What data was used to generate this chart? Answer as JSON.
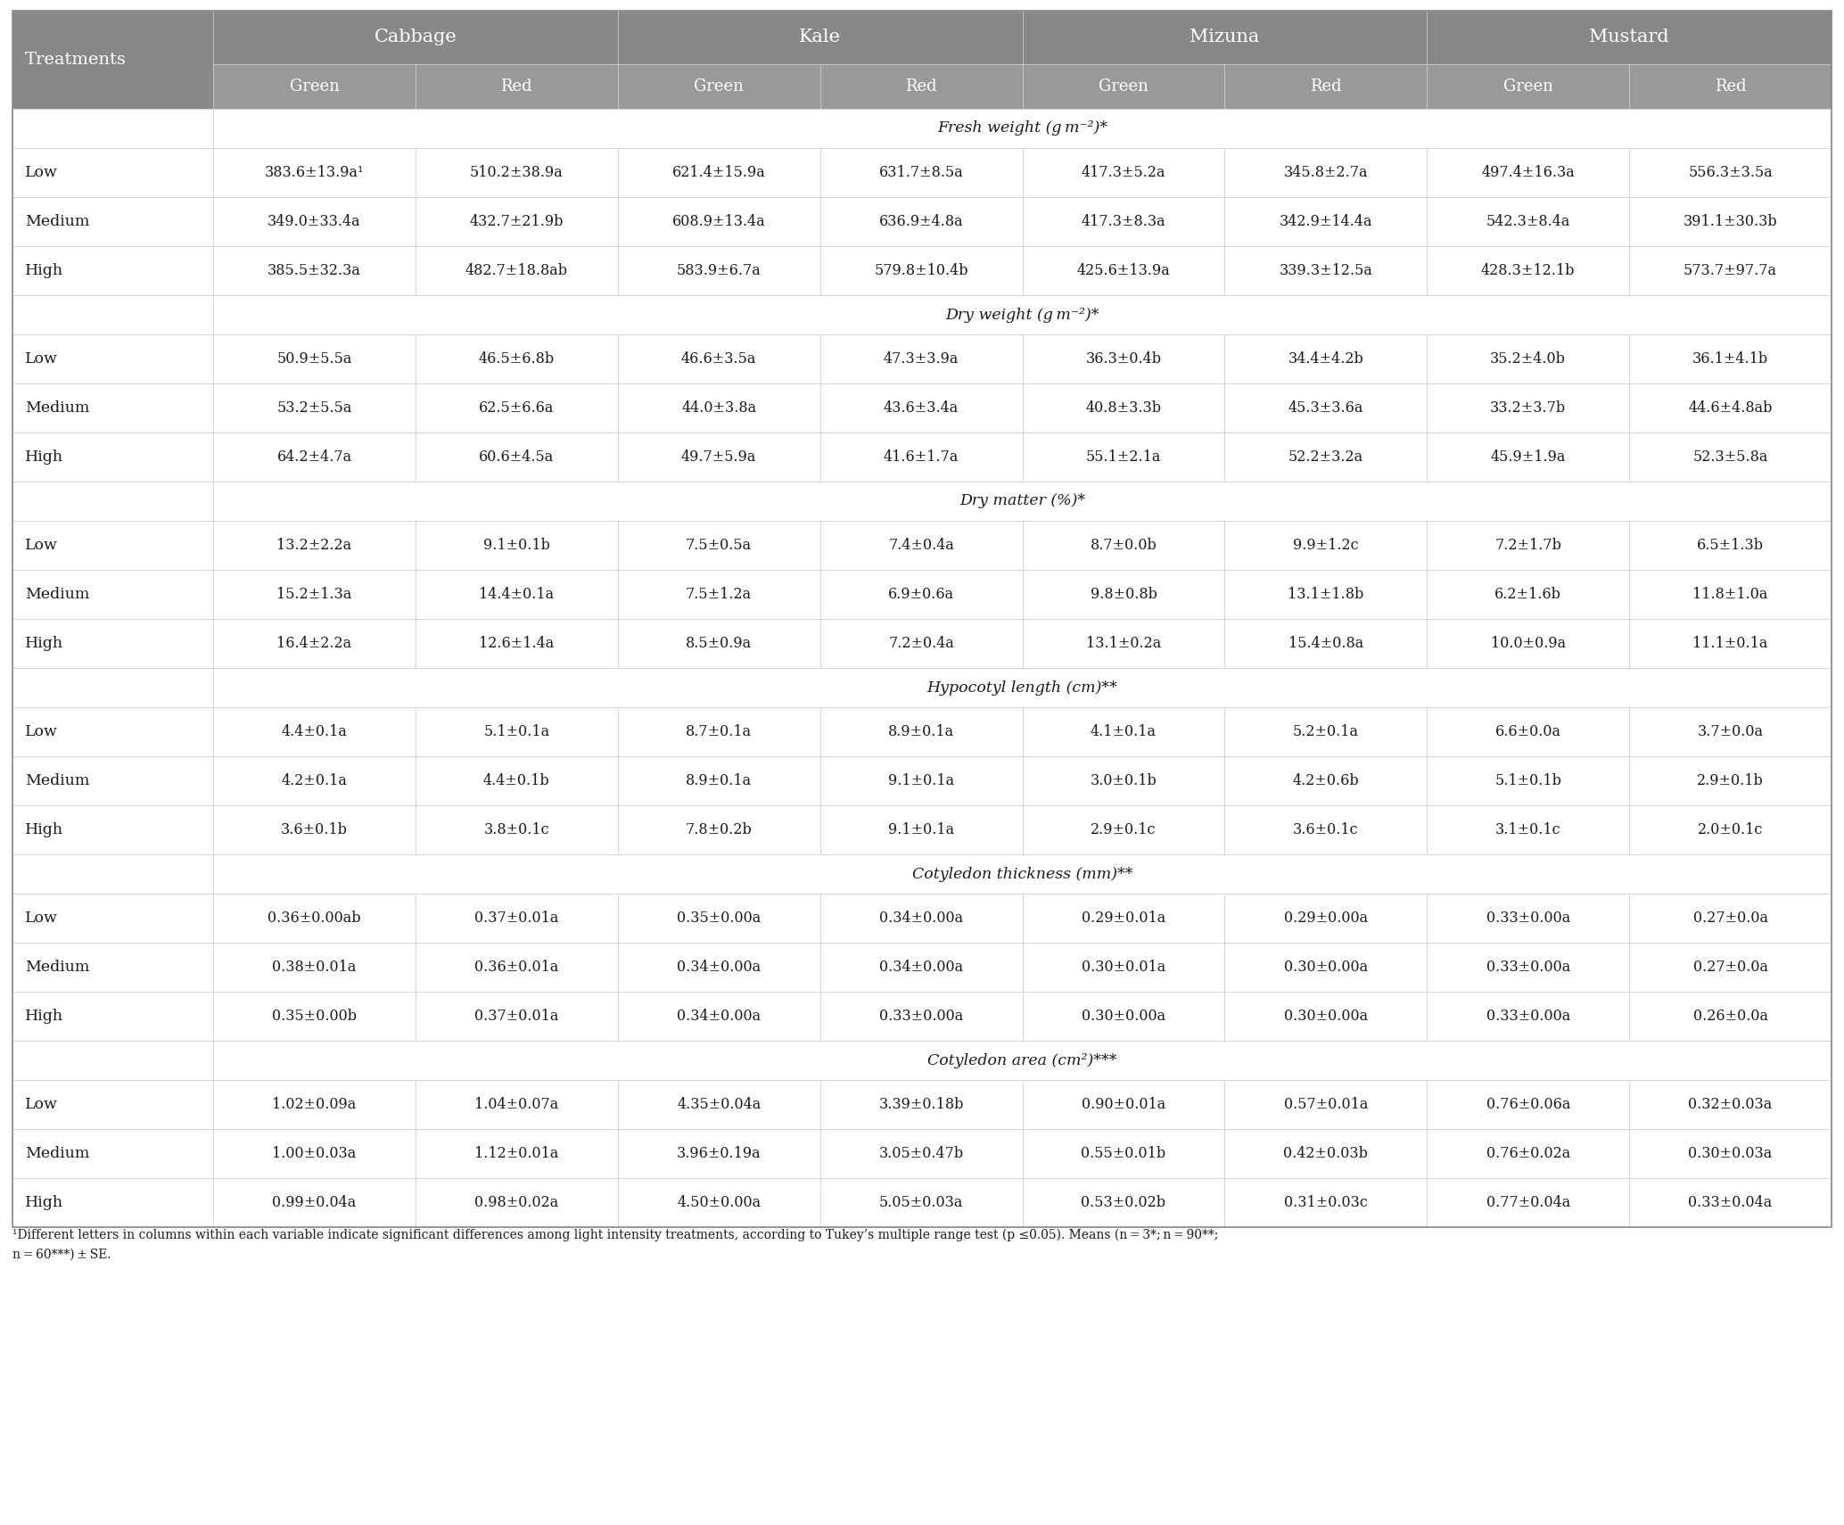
{
  "header_bg": "#888888",
  "header_text": "#ffffff",
  "subheader_bg": "#999999",
  "row_bg_white": "#ffffff",
  "cell_text": "#1a1a1a",
  "border_color": "#cccccc",
  "footnote_text": "#1a1a1a",
  "col1_label": "Treatments",
  "main_headers": [
    "Cabbage",
    "Kale",
    "Mizuna",
    "Mustard"
  ],
  "sub_headers": [
    "Green",
    "Red",
    "Green",
    "Red",
    "Green",
    "Red",
    "Green",
    "Red"
  ],
  "sections": [
    {
      "title": "Fresh weight (g m⁻²)*",
      "rows": [
        {
          "label": "Low",
          "vals": [
            "383.6±13.9a¹",
            "510.2±38.9a",
            "621.4±15.9a",
            "631.7±8.5a",
            "417.3±5.2a",
            "345.8±2.7a",
            "497.4±16.3a",
            "556.3±3.5a"
          ]
        },
        {
          "label": "Medium",
          "vals": [
            "349.0±33.4a",
            "432.7±21.9b",
            "608.9±13.4a",
            "636.9±4.8a",
            "417.3±8.3a",
            "342.9±14.4a",
            "542.3±8.4a",
            "391.1±30.3b"
          ]
        },
        {
          "label": "High",
          "vals": [
            "385.5±32.3a",
            "482.7±18.8ab",
            "583.9±6.7a",
            "579.8±10.4b",
            "425.6±13.9a",
            "339.3±12.5a",
            "428.3±12.1b",
            "573.7±97.7a"
          ]
        }
      ]
    },
    {
      "title": "Dry weight (g m⁻²)*",
      "rows": [
        {
          "label": "Low",
          "vals": [
            "50.9±5.5a",
            "46.5±6.8b",
            "46.6±3.5a",
            "47.3±3.9a",
            "36.3±0.4b",
            "34.4±4.2b",
            "35.2±4.0b",
            "36.1±4.1b"
          ]
        },
        {
          "label": "Medium",
          "vals": [
            "53.2±5.5a",
            "62.5±6.6a",
            "44.0±3.8a",
            "43.6±3.4a",
            "40.8±3.3b",
            "45.3±3.6a",
            "33.2±3.7b",
            "44.6±4.8ab"
          ]
        },
        {
          "label": "High",
          "vals": [
            "64.2±4.7a",
            "60.6±4.5a",
            "49.7±5.9a",
            "41.6±1.7a",
            "55.1±2.1a",
            "52.2±3.2a",
            "45.9±1.9a",
            "52.3±5.8a"
          ]
        }
      ]
    },
    {
      "title": "Dry matter (%)*",
      "rows": [
        {
          "label": "Low",
          "vals": [
            "13.2±2.2a",
            "9.1±0.1b",
            "7.5±0.5a",
            "7.4±0.4a",
            "8.7±0.0b",
            "9.9±1.2c",
            "7.2±1.7b",
            "6.5±1.3b"
          ]
        },
        {
          "label": "Medium",
          "vals": [
            "15.2±1.3a",
            "14.4±0.1a",
            "7.5±1.2a",
            "6.9±0.6a",
            "9.8±0.8b",
            "13.1±1.8b",
            "6.2±1.6b",
            "11.8±1.0a"
          ]
        },
        {
          "label": "High",
          "vals": [
            "16.4±2.2a",
            "12.6±1.4a",
            "8.5±0.9a",
            "7.2±0.4a",
            "13.1±0.2a",
            "15.4±0.8a",
            "10.0±0.9a",
            "11.1±0.1a"
          ]
        }
      ]
    },
    {
      "title": "Hypocotyl length (cm)**",
      "rows": [
        {
          "label": "Low",
          "vals": [
            "4.4±0.1a",
            "5.1±0.1a",
            "8.7±0.1a",
            "8.9±0.1a",
            "4.1±0.1a",
            "5.2±0.1a",
            "6.6±0.0a",
            "3.7±0.0a"
          ]
        },
        {
          "label": "Medium",
          "vals": [
            "4.2±0.1a",
            "4.4±0.1b",
            "8.9±0.1a",
            "9.1±0.1a",
            "3.0±0.1b",
            "4.2±0.6b",
            "5.1±0.1b",
            "2.9±0.1b"
          ]
        },
        {
          "label": "High",
          "vals": [
            "3.6±0.1b",
            "3.8±0.1c",
            "7.8±0.2b",
            "9.1±0.1a",
            "2.9±0.1c",
            "3.6±0.1c",
            "3.1±0.1c",
            "2.0±0.1c"
          ]
        }
      ]
    },
    {
      "title": "Cotyledon thickness (mm)**",
      "rows": [
        {
          "label": "Low",
          "vals": [
            "0.36±0.00ab",
            "0.37±0.01a",
            "0.35±0.00a",
            "0.34±0.00a",
            "0.29±0.01a",
            "0.29±0.00a",
            "0.33±0.00a",
            "0.27±0.0a"
          ]
        },
        {
          "label": "Medium",
          "vals": [
            "0.38±0.01a",
            "0.36±0.01a",
            "0.34±0.00a",
            "0.34±0.00a",
            "0.30±0.01a",
            "0.30±0.00a",
            "0.33±0.00a",
            "0.27±0.0a"
          ]
        },
        {
          "label": "High",
          "vals": [
            "0.35±0.00b",
            "0.37±0.01a",
            "0.34±0.00a",
            "0.33±0.00a",
            "0.30±0.00a",
            "0.30±0.00a",
            "0.33±0.00a",
            "0.26±0.0a"
          ]
        }
      ]
    },
    {
      "title": "Cotyledon area (cm²)***",
      "rows": [
        {
          "label": "Low",
          "vals": [
            "1.02±0.09a",
            "1.04±0.07a",
            "4.35±0.04a",
            "3.39±0.18b",
            "0.90±0.01a",
            "0.57±0.01a",
            "0.76±0.06a",
            "0.32±0.03a"
          ]
        },
        {
          "label": "Medium",
          "vals": [
            "1.00±0.03a",
            "1.12±0.01a",
            "3.96±0.19a",
            "3.05±0.47b",
            "0.55±0.01b",
            "0.42±0.03b",
            "0.76±0.02a",
            "0.30±0.03a"
          ]
        },
        {
          "label": "High",
          "vals": [
            "0.99±0.04a",
            "0.98±0.02a",
            "4.50±0.00a",
            "5.05±0.03a",
            "0.53±0.02b",
            "0.31±0.03c",
            "0.77±0.04a",
            "0.33±0.04a"
          ]
        }
      ]
    }
  ],
  "footnote_line1": "¹Different letters in columns within each variable indicate significant differences among light intensity treatments, according to Tukey’s multiple range test (p ≤0.05). Means (n = 3*; n = 90**;",
  "footnote_line2": "n = 60***) ± SE."
}
